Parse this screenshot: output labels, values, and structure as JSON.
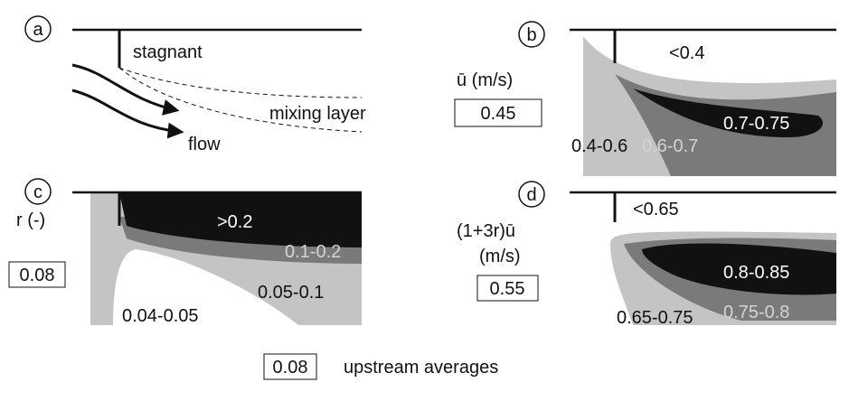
{
  "legend": {
    "value": "0.08",
    "label": "upstream averages"
  },
  "panels": [
    {
      "id": "a",
      "labels": [
        "stagnant",
        "mixing layer",
        "flow"
      ]
    },
    {
      "id": "b",
      "axis_label": [
        "ū (m/s)"
      ],
      "average": "0.45",
      "regions": [
        "<0.4",
        "0.7-0.75",
        "0.4-0.6",
        "0.6-0.7"
      ]
    },
    {
      "id": "c",
      "axis_label": [
        "r (-)"
      ],
      "average": "0.08",
      "regions": [
        ">0.2",
        "0.1-0.2",
        "0.05-0.1",
        "0.04-0.05"
      ]
    },
    {
      "id": "d",
      "axis_label": [
        "(1+3r)ū",
        "(m/s)"
      ],
      "average": "0.55",
      "regions": [
        "<0.65",
        "0.8-0.85",
        "0.65-0.75",
        "0.75-0.8"
      ]
    }
  ]
}
